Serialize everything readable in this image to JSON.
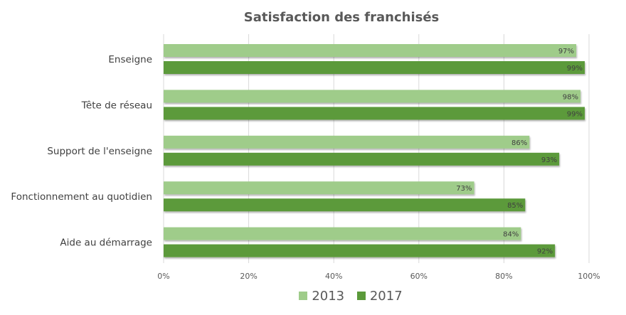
{
  "chart_data": {
    "type": "bar",
    "orientation": "horizontal",
    "title": "Satisfaction des franchisés",
    "categories": [
      "Enseigne",
      "Tête de réseau",
      "Support de l'enseigne",
      "Fonctionnement au quotidien",
      "Aide au démarrage"
    ],
    "series": [
      {
        "name": "2013",
        "color": "#9fcc8a",
        "values": [
          97,
          98,
          86,
          73,
          84
        ]
      },
      {
        "name": "2017",
        "color": "#5b9a3a",
        "values": [
          99,
          99,
          93,
          85,
          92
        ]
      }
    ],
    "xlim": [
      0,
      100
    ],
    "xticks": [
      "0%",
      "20%",
      "40%",
      "60%",
      "80%",
      "100%"
    ],
    "grid": true,
    "legend": "bottom"
  }
}
